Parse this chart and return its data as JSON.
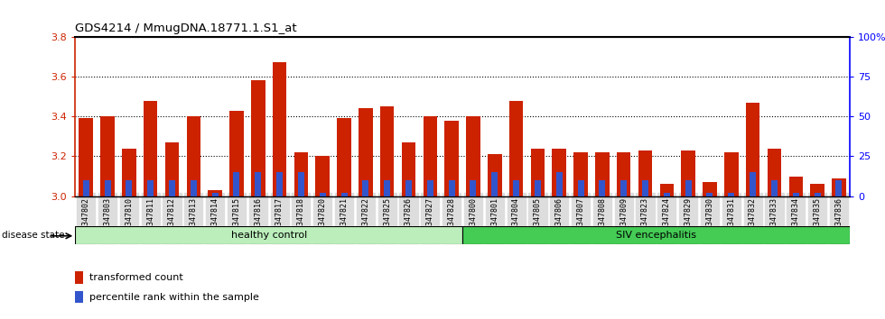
{
  "title": "GDS4214 / MmugDNA.18771.1.S1_at",
  "samples": [
    "GSM347802",
    "GSM347803",
    "GSM347810",
    "GSM347811",
    "GSM347812",
    "GSM347813",
    "GSM347814",
    "GSM347815",
    "GSM347816",
    "GSM347817",
    "GSM347818",
    "GSM347820",
    "GSM347821",
    "GSM347822",
    "GSM347825",
    "GSM347826",
    "GSM347827",
    "GSM347828",
    "GSM347800",
    "GSM347801",
    "GSM347804",
    "GSM347805",
    "GSM347806",
    "GSM347807",
    "GSM347808",
    "GSM347809",
    "GSM347823",
    "GSM347824",
    "GSM347829",
    "GSM347830",
    "GSM347831",
    "GSM347832",
    "GSM347833",
    "GSM347834",
    "GSM347835",
    "GSM347836"
  ],
  "red_values": [
    3.39,
    3.4,
    3.24,
    3.48,
    3.27,
    3.4,
    3.03,
    3.43,
    3.58,
    3.67,
    3.22,
    3.2,
    3.39,
    3.44,
    3.45,
    3.27,
    3.4,
    3.38,
    3.4,
    3.21,
    3.48,
    3.24,
    3.24,
    3.22,
    3.22,
    3.22,
    3.23,
    3.06,
    3.23,
    3.07,
    3.22,
    3.47,
    3.24,
    3.1,
    3.06,
    3.09
  ],
  "blue_percentiles": [
    10,
    10,
    10,
    10,
    10,
    10,
    2,
    15,
    15,
    15,
    15,
    2,
    2,
    10,
    10,
    10,
    10,
    10,
    10,
    15,
    10,
    10,
    15,
    10,
    10,
    10,
    10,
    2,
    10,
    2,
    2,
    15,
    10,
    2,
    2,
    10
  ],
  "n_healthy": 18,
  "n_siv": 18,
  "ylim_left": [
    3.0,
    3.8
  ],
  "ylim_right": [
    0,
    100
  ],
  "right_ticks": [
    0,
    25,
    50,
    75,
    100
  ],
  "left_ticks": [
    3.0,
    3.2,
    3.4,
    3.6,
    3.8
  ],
  "bar_color_red": "#cc2200",
  "bar_color_blue": "#3355cc",
  "healthy_color": "#bbeebb",
  "siv_color": "#44cc55",
  "tick_bg_color": "#dddddd",
  "label_red": "transformed count",
  "label_blue": "percentile rank within the sample",
  "disease_state_label": "disease state",
  "healthy_label": "healthy control",
  "siv_label": "SIV encephalitis"
}
